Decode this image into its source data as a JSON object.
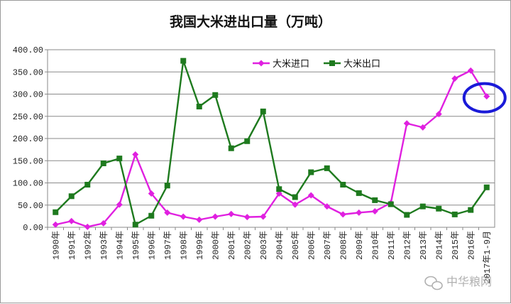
{
  "chart_data": {
    "type": "line",
    "title": "我国大米进出口量（万吨）",
    "categories": [
      "1990年",
      "1991年",
      "1992年",
      "1993年",
      "1994年",
      "1995年",
      "1996年",
      "1997年",
      "1998年",
      "1999年",
      "2000年",
      "2001年",
      "2002年",
      "2003年",
      "2004年",
      "2005年",
      "2006年",
      "2007年",
      "2008年",
      "2009年",
      "2010年",
      "2011年",
      "2012年",
      "2013年",
      "2014年",
      "2015年",
      "2016年",
      "2017年1-9月"
    ],
    "yticks": [
      "0.00",
      "50.00",
      "100.00",
      "150.00",
      "200.00",
      "250.00",
      "300.00",
      "350.00",
      "400.00"
    ],
    "ylim": [
      0,
      400
    ],
    "grid": true,
    "legend_position": "top-right",
    "series": [
      {
        "name": "大米进口",
        "color": "#e020e0",
        "marker": "diamond",
        "values": [
          6,
          14,
          1,
          9,
          51,
          164,
          76,
          33,
          24,
          17,
          24,
          30,
          23,
          24,
          76,
          51,
          72,
          47,
          29,
          33,
          36,
          55,
          234,
          225,
          255,
          335,
          353,
          295
        ]
      },
      {
        "name": "大米出口",
        "color": "#1e7a1e",
        "marker": "square",
        "values": [
          34,
          70,
          96,
          144,
          155,
          6,
          26,
          94,
          375,
          272,
          298,
          178,
          194,
          261,
          86,
          68,
          124,
          133,
          96,
          77,
          61,
          52,
          28,
          47,
          42,
          29,
          39,
          90
        ]
      }
    ],
    "annotation": {
      "type": "ellipse",
      "color": "#1a1ad8",
      "target_index": 27
    }
  },
  "watermark": {
    "text": "中华粮网",
    "icon": "wechat-icon"
  }
}
